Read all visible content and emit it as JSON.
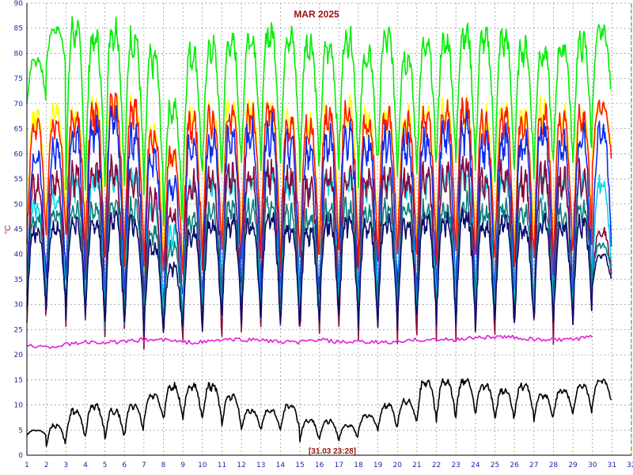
{
  "chart_data": {
    "type": "line",
    "title": "MAR 2025",
    "ylabel": "°C",
    "timestamp": "[31.03 23:28]",
    "xlim": [
      1,
      32
    ],
    "ylim": [
      0,
      90
    ],
    "x_ticks": [
      1,
      2,
      3,
      4,
      5,
      6,
      7,
      8,
      9,
      10,
      11,
      12,
      13,
      14,
      15,
      16,
      17,
      18,
      19,
      20,
      21,
      22,
      23,
      24,
      25,
      26,
      27,
      28,
      29,
      30,
      31,
      32
    ],
    "y_ticks": [
      0,
      5,
      10,
      15,
      20,
      25,
      30,
      35,
      40,
      45,
      50,
      55,
      60,
      65,
      70,
      75,
      80,
      85,
      90
    ],
    "grid": true,
    "series": [
      {
        "color": "#00ee00",
        "peaks": [
          79,
          85,
          86,
          84,
          86,
          84,
          80,
          70,
          81,
          82,
          83,
          84,
          85,
          84,
          83,
          82,
          84,
          80,
          84,
          80,
          82,
          83,
          85,
          84,
          84,
          82,
          81,
          82,
          83,
          85
        ],
        "troughs": [
          70,
          78,
          55,
          54,
          55,
          54,
          52,
          45,
          54,
          55,
          56,
          57,
          58,
          58,
          56,
          57,
          58,
          55,
          58,
          56,
          57,
          58,
          58,
          57,
          56,
          57,
          56,
          58,
          57,
          70
        ]
      },
      {
        "color": "#ffff00",
        "peaks": [
          68,
          69,
          69,
          70,
          72,
          70,
          65,
          60,
          68,
          69,
          70,
          70,
          70,
          68,
          67,
          69,
          70,
          68,
          69,
          68,
          69,
          70,
          70,
          68,
          69,
          68,
          70,
          68,
          69,
          70
        ],
        "troughs": [
          44,
          48,
          45,
          40,
          42,
          40,
          38,
          38,
          40,
          41,
          42,
          42,
          42,
          40,
          40,
          42,
          42,
          40,
          42,
          40,
          42,
          42,
          42,
          40,
          42,
          40,
          42,
          40,
          42,
          60
        ]
      },
      {
        "color": "#ff1a00",
        "peaks": [
          66,
          67,
          68,
          70,
          71,
          70,
          64,
          60,
          67,
          68,
          69,
          69,
          70,
          67,
          66,
          68,
          69,
          67,
          68,
          67,
          68,
          69,
          70,
          67,
          68,
          67,
          69,
          67,
          68,
          70
        ],
        "troughs": [
          42,
          45,
          43,
          38,
          40,
          38,
          36,
          36,
          38,
          39,
          40,
          40,
          40,
          38,
          38,
          40,
          40,
          38,
          40,
          38,
          40,
          40,
          40,
          38,
          40,
          38,
          40,
          38,
          40,
          58
        ]
      },
      {
        "color": "#0a2cf0",
        "peaks": [
          60,
          62,
          64,
          66,
          68,
          65,
          60,
          55,
          63,
          64,
          65,
          65,
          66,
          63,
          62,
          64,
          65,
          63,
          64,
          63,
          64,
          65,
          66,
          63,
          64,
          63,
          65,
          63,
          64,
          65
        ],
        "troughs": [
          32,
          34,
          34,
          30,
          30,
          30,
          29,
          29,
          30,
          30,
          31,
          31,
          31,
          30,
          30,
          31,
          31,
          30,
          31,
          30,
          31,
          31,
          31,
          30,
          31,
          30,
          31,
          30,
          31,
          40
        ]
      },
      {
        "color": "#00d8e8",
        "peaks": [
          50,
          52,
          55,
          56,
          57,
          56,
          50,
          45,
          54,
          55,
          56,
          56,
          57,
          55,
          54,
          56,
          56,
          55,
          56,
          55,
          56,
          56,
          57,
          55,
          56,
          55,
          56,
          55,
          56,
          55
        ],
        "troughs": [
          30,
          31,
          30,
          29,
          28,
          28,
          27,
          27,
          28,
          28,
          29,
          29,
          29,
          28,
          28,
          29,
          29,
          28,
          29,
          28,
          29,
          29,
          29,
          28,
          29,
          28,
          29,
          28,
          29,
          35
        ]
      },
      {
        "color": "#8b0a3c",
        "peaks": [
          55,
          56,
          57,
          58,
          58,
          57,
          52,
          48,
          55,
          56,
          57,
          57,
          58,
          56,
          55,
          57,
          57,
          56,
          57,
          56,
          57,
          57,
          58,
          56,
          57,
          56,
          57,
          56,
          57,
          45
        ],
        "troughs": [
          26,
          28,
          27,
          25,
          24,
          24,
          23,
          23,
          24,
          24,
          25,
          25,
          25,
          24,
          24,
          25,
          25,
          24,
          25,
          24,
          25,
          25,
          25,
          24,
          25,
          24,
          25,
          24,
          25,
          35
        ]
      },
      {
        "color": "#0a8080",
        "peaks": [
          48,
          49,
          50,
          50,
          51,
          50,
          45,
          42,
          48,
          49,
          50,
          50,
          51,
          49,
          48,
          50,
          50,
          49,
          50,
          49,
          50,
          50,
          51,
          49,
          50,
          49,
          50,
          49,
          50,
          42
        ],
        "troughs": [
          30,
          30,
          29,
          28,
          27,
          27,
          26,
          26,
          27,
          27,
          28,
          28,
          28,
          27,
          27,
          28,
          28,
          27,
          28,
          27,
          28,
          28,
          28,
          27,
          28,
          27,
          28,
          27,
          28,
          36
        ]
      },
      {
        "color": "#0a0a6e",
        "peaks": [
          45,
          46,
          47,
          47,
          48,
          47,
          42,
          38,
          45,
          46,
          47,
          47,
          48,
          46,
          45,
          47,
          47,
          46,
          47,
          46,
          47,
          47,
          48,
          46,
          47,
          46,
          47,
          46,
          47,
          40
        ],
        "troughs": [
          29,
          30,
          28,
          27,
          26,
          26,
          25,
          24,
          26,
          26,
          27,
          27,
          27,
          26,
          26,
          27,
          27,
          26,
          27,
          26,
          27,
          27,
          27,
          26,
          27,
          26,
          27,
          26,
          27,
          34
        ]
      },
      {
        "color": "#e020d8",
        "x": [
          1,
          2,
          3,
          4,
          5,
          6,
          7,
          8,
          9,
          10,
          11,
          12,
          13,
          14,
          15,
          16,
          17,
          18,
          19,
          20,
          21,
          22,
          23,
          24,
          25,
          26,
          27,
          28,
          29,
          30
        ],
        "y": [
          22,
          21.5,
          22,
          22.5,
          22.5,
          22.5,
          23,
          23,
          22.5,
          22.5,
          23,
          23,
          23,
          22.5,
          22.5,
          23,
          22.5,
          22.5,
          22.5,
          22.5,
          23,
          23,
          23,
          23.5,
          23.5,
          23.5,
          23,
          23,
          23,
          23.5
        ]
      },
      {
        "color": "#000000",
        "peaks": [
          5,
          6,
          9,
          10,
          9,
          10,
          12,
          14,
          14,
          14,
          12,
          9,
          9,
          10,
          7,
          7,
          6,
          8,
          10,
          11,
          15,
          15,
          15,
          14,
          13,
          14,
          12,
          13,
          14,
          15
        ],
        "troughs": [
          4,
          2,
          3,
          4,
          3,
          4,
          7,
          7,
          7,
          7,
          6,
          5,
          5,
          5,
          3,
          3,
          3,
          5,
          5,
          6,
          7,
          7,
          8,
          8,
          7,
          8,
          7,
          8,
          8,
          10
        ]
      }
    ]
  }
}
